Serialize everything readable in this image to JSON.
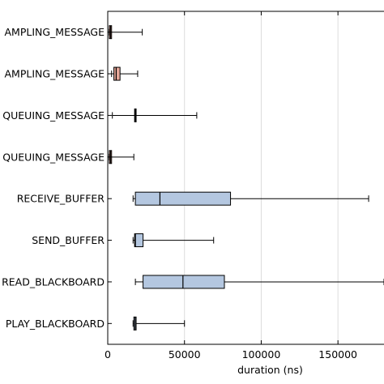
{
  "chart_data": {
    "type": "boxplot",
    "orientation": "horizontal",
    "title": "",
    "xlabel": "duration (ns)",
    "ylabel": "",
    "xlim": [
      0,
      180000
    ],
    "xticks": [
      0,
      50000,
      100000,
      150000
    ],
    "xtick_labels": [
      "0",
      "50000",
      "100000",
      "150000"
    ],
    "grid": "vertical",
    "categories": [
      {
        "label": "AMPLING_MESSAGE",
        "min": 800,
        "q1": 1000,
        "median": 1800,
        "q3": 2500,
        "max": 22500,
        "color": "#e8a89a"
      },
      {
        "label": "AMPLING_MESSAGE",
        "min": 2500,
        "q1": 4000,
        "median": 5500,
        "q3": 8000,
        "max": 19500,
        "color": "#e8a89a"
      },
      {
        "label": "QUEUING_MESSAGE",
        "min": 3000,
        "q1": 17500,
        "median": 18000,
        "q3": 18500,
        "max": 58000,
        "color": "#b4c7e0"
      },
      {
        "label": "QUEUING_MESSAGE",
        "min": 800,
        "q1": 1000,
        "median": 1800,
        "q3": 2500,
        "max": 17000,
        "color": "#e8a89a"
      },
      {
        "label": "RECEIVE_BUFFER",
        "min": 16500,
        "q1": 18000,
        "median": 34000,
        "q3": 80000,
        "max": 170000,
        "color": "#b4c7e0"
      },
      {
        "label": "SEND_BUFFER",
        "min": 16500,
        "q1": 17500,
        "median": 18000,
        "q3": 23000,
        "max": 69000,
        "color": "#b4c7e0"
      },
      {
        "label": "READ_BLACKBOARD",
        "min": 18000,
        "q1": 23000,
        "median": 49000,
        "q3": 76000,
        "max": 180000,
        "color": "#b4c7e0"
      },
      {
        "label": "PLAY_BLACKBOARD",
        "min": 16500,
        "q1": 17000,
        "median": 17800,
        "q3": 18500,
        "max": 50000,
        "color": "#b4c7e0"
      }
    ]
  }
}
